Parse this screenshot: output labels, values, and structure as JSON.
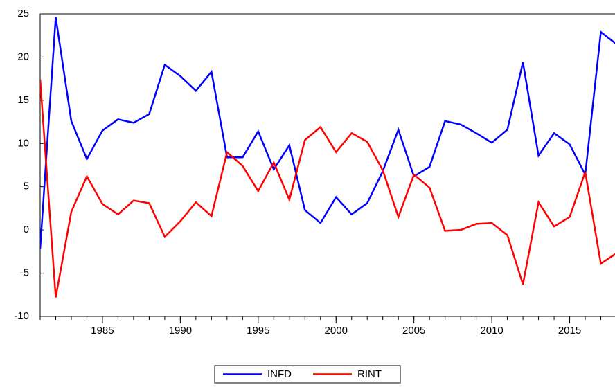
{
  "chart_data": {
    "type": "line",
    "x": [
      1981,
      1982,
      1983,
      1984,
      1985,
      1986,
      1987,
      1988,
      1989,
      1990,
      1991,
      1992,
      1993,
      1994,
      1995,
      1996,
      1997,
      1998,
      1999,
      2000,
      2001,
      2002,
      2003,
      2004,
      2005,
      2006,
      2007,
      2008,
      2009,
      2010,
      2011,
      2012,
      2013,
      2014,
      2015,
      2016,
      2017,
      2018
    ],
    "series": [
      {
        "name": "INFD",
        "color": "#0000ff",
        "values": [
          -2.2,
          24.6,
          12.6,
          8.2,
          11.5,
          12.8,
          12.4,
          13.4,
          19.1,
          17.8,
          16.1,
          18.3,
          8.4,
          8.4,
          11.4,
          7.0,
          9.8,
          2.3,
          0.8,
          3.8,
          1.8,
          3.1,
          6.8,
          11.6,
          6.2,
          7.3,
          12.6,
          12.2,
          11.2,
          10.1,
          11.6,
          19.4,
          8.6,
          11.2,
          9.9,
          6.4,
          22.9,
          21.5
        ]
      },
      {
        "name": "RINT",
        "color": "#ff0000",
        "values": [
          17.4,
          -7.8,
          2.1,
          6.2,
          3.0,
          1.8,
          3.4,
          3.1,
          -0.8,
          1.0,
          3.2,
          1.6,
          9.0,
          7.4,
          4.5,
          7.8,
          3.5,
          10.4,
          11.9,
          9.0,
          11.2,
          10.2,
          6.9,
          1.5,
          6.4,
          4.9,
          -0.1,
          0.0,
          0.7,
          0.8,
          -0.6,
          -6.3,
          3.2,
          0.4,
          1.5,
          6.7,
          -3.9,
          -2.7
        ]
      }
    ],
    "xlim": [
      1981,
      2018
    ],
    "xticks": [
      1985,
      1990,
      1995,
      2000,
      2005,
      2010,
      2015
    ],
    "ylim": [
      -10,
      25
    ],
    "yticks": [
      -10,
      -5,
      0,
      5,
      10,
      15,
      20,
      25
    ],
    "legend": "bottom"
  }
}
